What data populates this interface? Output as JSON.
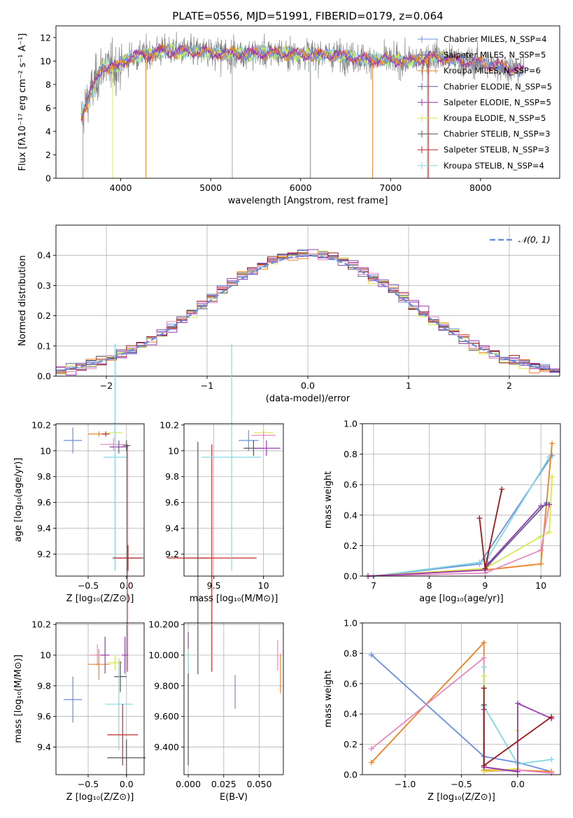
{
  "colors": {
    "chabrier_miles": "#6b8ee0",
    "salpeter_miles": "#8b44b0",
    "kroupa_miles": "#f08020",
    "chabrier_elodie": "#5a6090",
    "salpeter_elodie": "#9a3ab0",
    "kroupa_elodie": "#d8e84a",
    "chabrier_stelib": "#555555",
    "salpeter_stelib": "#c0282a",
    "kroupa_stelib": "#80d8e0",
    "pink": "#e58ac0",
    "darkred": "#9a1818",
    "observed": "#808080"
  },
  "chart_data": [
    {
      "id": "spectrum",
      "type": "line",
      "title": "PLATE=0556, MJD=51991, FIBERID=0179, z=0.064",
      "xlabel": "wavelength [Angstrom, rest frame]",
      "ylabel": "Flux [fλ10⁻¹⁷ erg cm⁻² s⁻¹ A⁻¹]",
      "xlim": [
        3280,
        8880
      ],
      "ylim": [
        0,
        13
      ],
      "xticks": [
        4000,
        5000,
        6000,
        7000,
        8000
      ],
      "yticks": [
        0,
        2,
        4,
        6,
        8,
        10,
        12
      ],
      "grid": false,
      "legend_position": "top-right",
      "legend": [
        "Chabrier MILES, N_SSP=4",
        "Salpeter MILES, N_SSP=5",
        "Kroupa MILES, N_SSP=6",
        "Chabrier ELODIE, N_SSP=5",
        "Salpeter ELODIE, N_SSP=5",
        "Kroupa ELODIE, N_SSP=5",
        "Chabrier STELIB, N_SSP=3",
        "Salpeter STELIB, N_SSP=3",
        "Kroupa STELIB, N_SSP=4"
      ],
      "continuum_anchors": [
        [
          3560,
          5.2
        ],
        [
          3650,
          7.0
        ],
        [
          3800,
          9.6
        ],
        [
          3950,
          9.4
        ],
        [
          4100,
          10.3
        ],
        [
          4300,
          10.6
        ],
        [
          4500,
          10.9
        ],
        [
          4800,
          10.8
        ],
        [
          5200,
          10.6
        ],
        [
          5600,
          10.7
        ],
        [
          6000,
          10.6
        ],
        [
          6400,
          10.5
        ],
        [
          6800,
          10.1
        ],
        [
          7200,
          10.0
        ],
        [
          7500,
          10.4
        ],
        [
          7800,
          10.0
        ],
        [
          8200,
          9.6
        ],
        [
          8480,
          9.2
        ]
      ]
    },
    {
      "id": "residuals",
      "type": "histogram",
      "xlabel": "(data-model)/error",
      "ylabel": "Normed distribution",
      "xlim": [
        -2.5,
        2.5
      ],
      "ylim": [
        0,
        0.5
      ],
      "xticks": [
        -2,
        -1,
        0,
        1,
        2
      ],
      "yticks": [
        0.0,
        0.1,
        0.2,
        0.3,
        0.4
      ],
      "grid": true,
      "legend_position": "top-right",
      "legend": [
        "𝒩(0, 1)"
      ],
      "gaussian": {
        "mean": 0,
        "sigma": 1
      }
    },
    {
      "id": "age_vs_Z",
      "type": "errorbar",
      "xlabel": "Z [log₁₀(Z/Z⊙)]",
      "ylabel": "age  [log₁₀(age/yr)]",
      "xlim": [
        -0.92,
        0.23
      ],
      "ylim": [
        9.03,
        10.21
      ],
      "xticks": [
        -0.5,
        0.0
      ],
      "yticks": [
        9.2,
        9.4,
        9.6,
        9.8,
        10.0,
        10.2
      ],
      "grid": true,
      "points": [
        {
          "x": -0.7,
          "y": 10.08,
          "xerr": 0.12,
          "yerr": 0.1,
          "color": "chabrier_miles"
        },
        {
          "x": -0.36,
          "y": 10.13,
          "xerr": 0.14,
          "yerr": 0.02,
          "color": "kroupa_miles"
        },
        {
          "x": -0.27,
          "y": 10.13,
          "xerr": 0.05,
          "yerr": 0.02,
          "color": "salpeter_stelib"
        },
        {
          "x": -0.15,
          "y": 10.14,
          "xerr": 0.1,
          "yerr": 0.03,
          "color": "kroupa_elodie"
        },
        {
          "x": -0.17,
          "y": 10.05,
          "xerr": 0.17,
          "yerr": 0.05,
          "color": "pink"
        },
        {
          "x": -0.1,
          "y": 10.03,
          "xerr": 0.12,
          "yerr": 0.05,
          "color": "salpeter_elodie"
        },
        {
          "x": 0.0,
          "y": 10.04,
          "xerr": 0.05,
          "yerr": 0.04,
          "color": "chabrier_stelib"
        },
        {
          "x": -0.15,
          "y": 9.95,
          "xerr": 0.15,
          "yerr": 0.88,
          "color": "kroupa_stelib"
        },
        {
          "x": 0.02,
          "y": 9.17,
          "xerr": 0.2,
          "yerr": 0.1,
          "color": "chabrier_stelib"
        },
        {
          "x": 0.01,
          "y": 9.17,
          "xerr": 0.18,
          "yerr": 0.88,
          "color": "salpeter_stelib"
        }
      ]
    },
    {
      "id": "age_vs_mass",
      "type": "errorbar",
      "xlabel": "mass [log₁₀(M/M⊙)]",
      "ylabel": "",
      "xlim": [
        9.2,
        10.2
      ],
      "ylim": [
        9.03,
        10.21
      ],
      "xticks": [
        9.5,
        10.0
      ],
      "yticks": [
        9.2,
        9.4,
        9.6,
        9.8,
        10.0,
        10.2
      ],
      "grid": true,
      "points": [
        {
          "x": 9.34,
          "y": 9.17,
          "xerr": 0.12,
          "yerr": 0.9,
          "color": "chabrier_stelib"
        },
        {
          "x": 9.48,
          "y": 9.17,
          "xerr": 0.45,
          "yerr": 0.88,
          "color": "salpeter_stelib"
        },
        {
          "x": 9.68,
          "y": 9.95,
          "xerr": 0.3,
          "yerr": 0.88,
          "color": "kroupa_stelib"
        },
        {
          "x": 9.85,
          "y": 10.08,
          "xerr": 0.1,
          "yerr": 0.08,
          "color": "chabrier_miles"
        },
        {
          "x": 9.9,
          "y": 10.02,
          "xerr": 0.1,
          "yerr": 0.06,
          "color": "chabrier_stelib"
        },
        {
          "x": 10.0,
          "y": 10.14,
          "xerr": 0.1,
          "yerr": 0.03,
          "color": "kroupa_elodie"
        },
        {
          "x": 10.0,
          "y": 10.12,
          "xerr": 0.12,
          "yerr": 0.03,
          "color": "pink"
        },
        {
          "x": 10.03,
          "y": 10.02,
          "xerr": 0.14,
          "yerr": 0.06,
          "color": "salpeter_elodie"
        }
      ]
    },
    {
      "id": "mass_weight_vs_age",
      "type": "line",
      "xlabel": "age  [log₁₀(age/yr)]",
      "ylabel": "mass weight",
      "xlim": [
        6.8,
        10.35
      ],
      "ylim": [
        0,
        1
      ],
      "xticks": [
        7,
        8,
        9,
        10
      ],
      "yticks": [
        0.0,
        0.2,
        0.4,
        0.6,
        0.8,
        1.0
      ],
      "grid": true,
      "series": [
        {
          "color": "chabrier_miles",
          "x": [
            7.0,
            8.9,
            10.2
          ],
          "y": [
            0.0,
            0.08,
            0.79
          ]
        },
        {
          "color": "kroupa_stelib",
          "x": [
            7.0,
            8.9,
            9.05,
            10.15
          ],
          "y": [
            0.0,
            0.09,
            0.12,
            0.78
          ]
        },
        {
          "color": "kroupa_miles",
          "x": [
            6.9,
            9.0,
            10.0,
            10.2
          ],
          "y": [
            0.0,
            0.04,
            0.08,
            0.87
          ]
        },
        {
          "color": "kroupa_elodie",
          "x": [
            6.9,
            9.0,
            10.0,
            10.15,
            10.2
          ],
          "y": [
            0.0,
            0.05,
            0.26,
            0.29,
            0.65
          ]
        },
        {
          "color": "pink",
          "x": [
            6.9,
            9.0,
            10.0,
            10.15
          ],
          "y": [
            0.0,
            0.02,
            0.17,
            0.47
          ]
        },
        {
          "color": "salpeter_elodie",
          "x": [
            6.9,
            9.0,
            9.05,
            10.0,
            10.15
          ],
          "y": [
            0.0,
            0.04,
            0.08,
            0.46,
            0.47
          ]
        },
        {
          "color": "chabrier_elodie",
          "x": [
            9.0,
            10.1
          ],
          "y": [
            0.05,
            0.48
          ]
        },
        {
          "color": "darkred",
          "x": [
            8.9,
            9.0,
            9.3
          ],
          "y": [
            0.38,
            0.05,
            0.57
          ]
        }
      ]
    },
    {
      "id": "mass_vs_Z",
      "type": "errorbar",
      "xlabel": "Z [log₁₀(Z/Z⊙)]",
      "ylabel": "mass [log₁₀(M/M⊙)]",
      "xlim": [
        -0.92,
        0.23
      ],
      "ylim": [
        9.22,
        10.21
      ],
      "xticks": [
        -0.5,
        0.0
      ],
      "yticks": [
        9.4,
        9.6,
        9.8,
        10.0,
        10.2
      ],
      "grid": true,
      "points": [
        {
          "x": -0.7,
          "y": 9.71,
          "xerr": 0.12,
          "yerr": 0.15,
          "color": "chabrier_miles"
        },
        {
          "x": -0.38,
          "y": 10.0,
          "xerr": 0.1,
          "yerr": 0.07,
          "color": "pink"
        },
        {
          "x": -0.36,
          "y": 9.94,
          "xerr": 0.14,
          "yerr": 0.1,
          "color": "kroupa_miles"
        },
        {
          "x": -0.28,
          "y": 10.0,
          "xerr": 0.06,
          "yerr": 0.12,
          "color": "salpeter_elodie"
        },
        {
          "x": -0.15,
          "y": 9.95,
          "xerr": 0.1,
          "yerr": 0.05,
          "color": "kroupa_elodie"
        },
        {
          "x": -0.08,
          "y": 9.86,
          "xerr": 0.08,
          "yerr": 0.1,
          "color": "chabrier_stelib"
        },
        {
          "x": -0.02,
          "y": 10.0,
          "xerr": 0.04,
          "yerr": 0.12,
          "color": "salpeter_elodie"
        },
        {
          "x": -0.1,
          "y": 9.68,
          "xerr": 0.18,
          "yerr": 0.3,
          "color": "kroupa_stelib"
        },
        {
          "x": -0.05,
          "y": 9.48,
          "xerr": 0.2,
          "yerr": 0.2,
          "color": "salpeter_stelib"
        },
        {
          "x": 0.0,
          "y": 9.33,
          "xerr": 0.25,
          "yerr": 0.12,
          "color": "chabrier_stelib"
        }
      ]
    },
    {
      "id": "mass_vs_EBV",
      "type": "errorbar",
      "xlabel": "E(B-V)",
      "ylabel": "",
      "xlim": [
        -0.003,
        0.067
      ],
      "ylim": [
        9.22,
        10.21
      ],
      "xticks": [
        0.0,
        0.025,
        0.05
      ],
      "yticks": [
        9.4,
        9.6,
        9.8,
        10.0,
        10.2
      ],
      "grid": true,
      "points": [
        {
          "x": 0.0,
          "y": 10.0,
          "xerr": 0.0,
          "yerr": 0.15,
          "color": "salpeter_elodie"
        },
        {
          "x": 0.0,
          "y": 9.94,
          "xerr": 0.0,
          "yerr": 0.1,
          "color": "kroupa_elodie"
        },
        {
          "x": 0.0,
          "y": 9.68,
          "xerr": 0.0,
          "yerr": 0.35,
          "color": "kroupa_stelib"
        },
        {
          "x": 0.0,
          "y": 9.58,
          "xerr": 0.0,
          "yerr": 0.3,
          "color": "chabrier_stelib"
        },
        {
          "x": 0.033,
          "y": 9.76,
          "xerr": 0.0,
          "yerr": 0.11,
          "color": "chabrier_miles"
        },
        {
          "x": 0.063,
          "y": 10.0,
          "xerr": 0.0,
          "yerr": 0.1,
          "color": "pink"
        },
        {
          "x": 0.065,
          "y": 9.88,
          "xerr": 0.0,
          "yerr": 0.13,
          "color": "kroupa_miles"
        }
      ]
    },
    {
      "id": "mass_weight_vs_Z",
      "type": "line",
      "xlabel": "Z [log₁₀(Z/Z⊙)]",
      "ylabel": "mass weight",
      "xlim": [
        -1.38,
        0.38
      ],
      "ylim": [
        0,
        1
      ],
      "xticks": [
        -1.0,
        -0.5,
        0.0
      ],
      "yticks": [
        0.0,
        0.2,
        0.4,
        0.6,
        0.8,
        1.0
      ],
      "grid": true,
      "series": [
        {
          "color": "chabrier_miles",
          "x": [
            -1.3,
            -0.3,
            0.0,
            0.3
          ],
          "y": [
            0.79,
            0.12,
            0.08,
            0.02
          ]
        },
        {
          "color": "kroupa_miles",
          "x": [
            -1.3,
            -0.3,
            -0.3,
            0.0,
            0.3
          ],
          "y": [
            0.08,
            0.87,
            0.03,
            0.03,
            0.02
          ]
        },
        {
          "color": "pink",
          "x": [
            -1.3,
            -0.3,
            -0.3,
            0.0,
            0.3
          ],
          "y": [
            0.17,
            0.77,
            0.02,
            0.03,
            0.01
          ]
        },
        {
          "color": "kroupa_stelib",
          "x": [
            -0.3,
            -0.3,
            0.0,
            0.3
          ],
          "y": [
            0.71,
            0.45,
            0.07,
            0.1
          ]
        },
        {
          "color": "kroupa_elodie",
          "x": [
            -0.3,
            -0.3,
            0.0,
            0.0
          ],
          "y": [
            0.65,
            0.02,
            0.04,
            0.29
          ]
        },
        {
          "color": "chabrier_stelib",
          "x": [
            -0.3,
            -0.3,
            0.0
          ],
          "y": [
            0.46,
            0.05,
            0.02
          ]
        },
        {
          "color": "salpeter_elodie",
          "x": [
            -0.3,
            -0.3,
            0.0,
            0.0,
            0.3
          ],
          "y": [
            0.43,
            0.05,
            0.02,
            0.47,
            0.37
          ]
        },
        {
          "color": "darkred",
          "x": [
            -0.3,
            -0.3,
            0.3
          ],
          "y": [
            0.57,
            0.06,
            0.38
          ]
        }
      ]
    }
  ]
}
